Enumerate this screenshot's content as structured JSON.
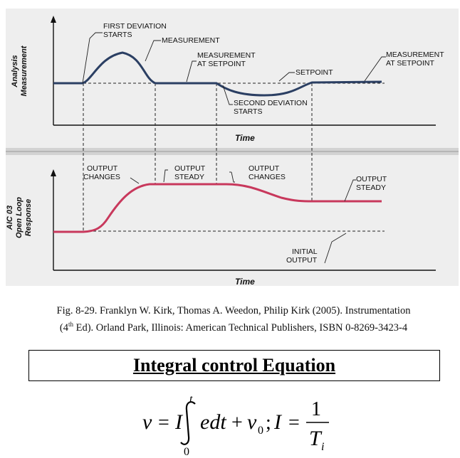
{
  "figure": {
    "top_panel": {
      "ylabel_line1": "Analysis",
      "ylabel_line2": "Measurement",
      "xlabel": "Time",
      "annotations": {
        "first_deviation_1": "FIRST DEVIATION",
        "first_deviation_2": "STARTS",
        "measurement": "MEASUREMENT",
        "meas_setpoint_a1": "MEASUREMENT",
        "meas_setpoint_a2": "AT SETPOINT",
        "meas_setpoint_b1": "MEASUREMENT",
        "meas_setpoint_b2": "AT SETPOINT",
        "setpoint": "SETPOINT",
        "second_deviation_1": "SECOND DEVIATION",
        "second_deviation_2": "STARTS"
      }
    },
    "bottom_panel": {
      "ylabel_line1": "AIC 03",
      "ylabel_line2": "Open Loop",
      "ylabel_line3": "Response",
      "xlabel": "Time",
      "annotations": {
        "output_changes_a1": "OUTPUT",
        "output_changes_a2": "CHANGES",
        "output_steady_a1": "OUTPUT",
        "output_steady_a2": "STEADY",
        "output_changes_b1": "OUTPUT",
        "output_changes_b2": "CHANGES",
        "output_steady_b1": "OUTPUT",
        "output_steady_b2": "STEADY",
        "initial_output_1": "INITIAL",
        "initial_output_2": "OUTPUT"
      }
    },
    "colors": {
      "measurement_curve": "#2b3f63",
      "output_curve": "#c8385c",
      "panel_bg": "#eeeeee"
    }
  },
  "caption": {
    "line1": "Fig. 8-29. Franklyn W. Kirk, Thomas A. Weedon, Philip Kirk (2005). Instrumentation",
    "line2_pre": "(4",
    "line2_sup": "th",
    "line2_post": " Ed). Orland Park, Illinois: American Technical Publishers, ISBN 0-8269-3423-4"
  },
  "heading": "Integral control Equation",
  "equation": {
    "v": "v",
    "eq1": "=",
    "I1": "I",
    "upper": "t",
    "lower": "0",
    "integrand": "edt",
    "plus": "+",
    "v0": "v",
    "v0_sub": "0",
    "semi": ";",
    "I2": "I",
    "eq2": "=",
    "numerator": "1",
    "denominator": "T",
    "denominator_sub": "i"
  }
}
